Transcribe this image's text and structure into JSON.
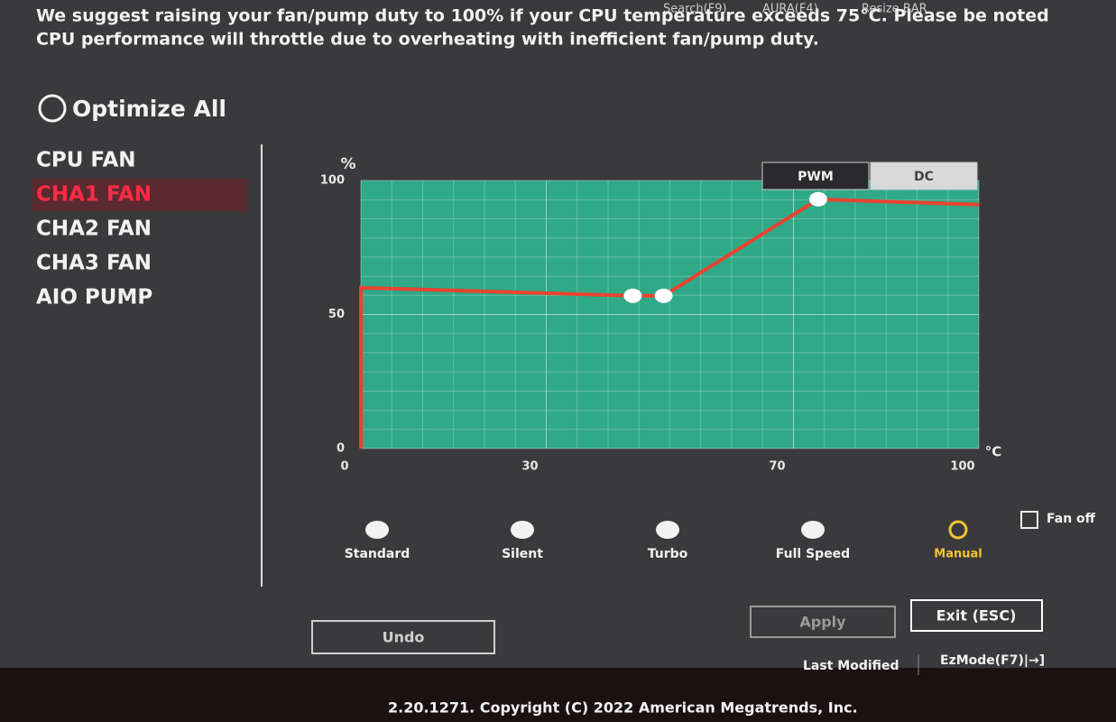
{
  "top_bar": {
    "items": [
      "Search(F9)",
      "AURA(F4)",
      "Resize BAR"
    ]
  },
  "warning": [
    "We suggest raising your fan/pump duty to 100% if your CPU temperature exceeds 75°C. Please be noted",
    "CPU performance will throttle due to overheating with inefficient fan/pump duty."
  ],
  "optimize_all": "Optimize All",
  "fans": {
    "items": [
      "CPU FAN",
      "CHA1 FAN",
      "CHA2 FAN",
      "CHA3 FAN",
      "AIO PUMP"
    ],
    "selected": 1
  },
  "chart_data": {
    "type": "line",
    "x": [
      0,
      0,
      44,
      49,
      74,
      100
    ],
    "values": [
      0,
      60,
      57,
      57,
      93,
      91
    ],
    "color": "#e8432f",
    "plot_color": "#2fa987",
    "xlim": [
      0,
      100
    ],
    "ylim": [
      0,
      100
    ],
    "xticks": [
      0,
      30,
      70,
      100
    ],
    "yticks": [
      0,
      50,
      100
    ],
    "xlabel": "°C",
    "ylabel": "%",
    "grid": true
  },
  "mode_toggle": {
    "options": [
      "PWM",
      "DC"
    ],
    "selected": 0
  },
  "presets": {
    "items": [
      "Standard",
      "Silent",
      "Turbo",
      "Full Speed",
      "Manual"
    ],
    "selected": 4
  },
  "fan_off": "Fan off",
  "buttons": {
    "undo": "Undo",
    "apply": "Apply",
    "exit": "Exit (ESC)"
  },
  "footer": {
    "items": [
      "Last Modified",
      "EzMode(F7)|→]"
    ],
    "copyright": "2.20.1271. Copyright (C) 2022 American Megatrends, Inc."
  }
}
